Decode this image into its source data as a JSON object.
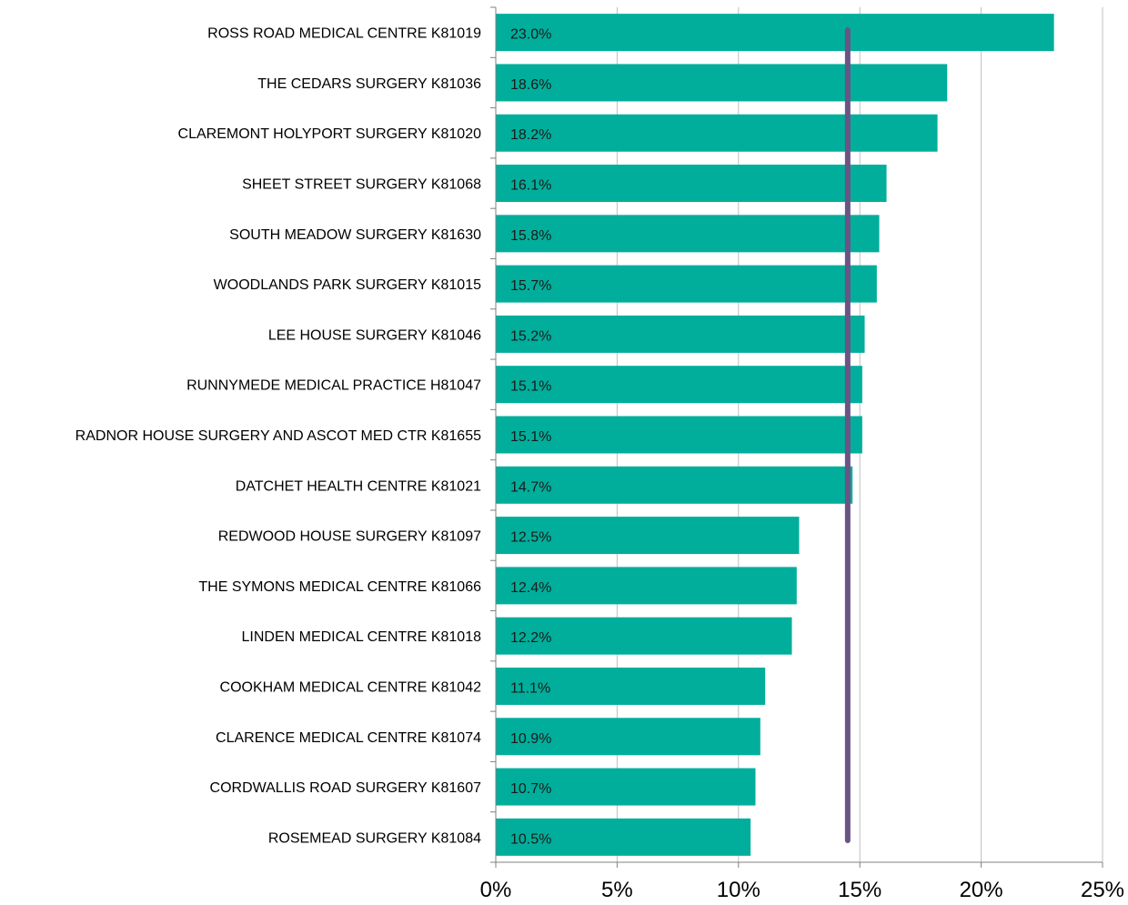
{
  "chart_data": {
    "type": "bar",
    "orientation": "horizontal",
    "categories": [
      "ROSS ROAD MEDICAL CENTRE K81019",
      "THE CEDARS SURGERY K81036",
      "CLAREMONT HOLYPORT SURGERY K81020",
      "SHEET STREET SURGERY K81068",
      "SOUTH MEADOW SURGERY K81630",
      "WOODLANDS PARK SURGERY K81015",
      "LEE HOUSE SURGERY K81046",
      "RUNNYMEDE MEDICAL PRACTICE H81047",
      "RADNOR HOUSE SURGERY AND ASCOT MED CTR K81655",
      "DATCHET HEALTH CENTRE K81021",
      "REDWOOD HOUSE SURGERY K81097",
      "THE SYMONS MEDICAL CENTRE K81066",
      "LINDEN MEDICAL CENTRE K81018",
      "COOKHAM MEDICAL CENTRE K81042",
      "CLARENCE MEDICAL CENTRE K81074",
      "CORDWALLIS ROAD SURGERY K81607",
      "ROSEMEAD SURGERY K81084"
    ],
    "values": [
      23.0,
      18.6,
      18.2,
      16.1,
      15.8,
      15.7,
      15.2,
      15.1,
      15.1,
      14.7,
      12.5,
      12.4,
      12.2,
      11.1,
      10.9,
      10.7,
      10.5
    ],
    "data_labels": [
      "23.0%",
      "18.6%",
      "18.2%",
      "16.1%",
      "15.8%",
      "15.7%",
      "15.2%",
      "15.1%",
      "15.1%",
      "14.7%",
      "12.5%",
      "12.4%",
      "12.2%",
      "11.1%",
      "10.9%",
      "10.7%",
      "10.5%"
    ],
    "reference_line": 14.5,
    "xlim": [
      0,
      25
    ],
    "xticks": [
      0,
      5,
      10,
      15,
      20,
      25
    ],
    "xtick_labels": [
      "0%",
      "5%",
      "10%",
      "15%",
      "20%",
      "25%"
    ],
    "title": "",
    "xlabel": "",
    "ylabel": "",
    "grid": "vertical",
    "legend": "none",
    "colors": {
      "bar": "#00ae9b",
      "reference_line": "#6a5485",
      "grid": "#bfbfbf",
      "axis": "#808080"
    }
  }
}
